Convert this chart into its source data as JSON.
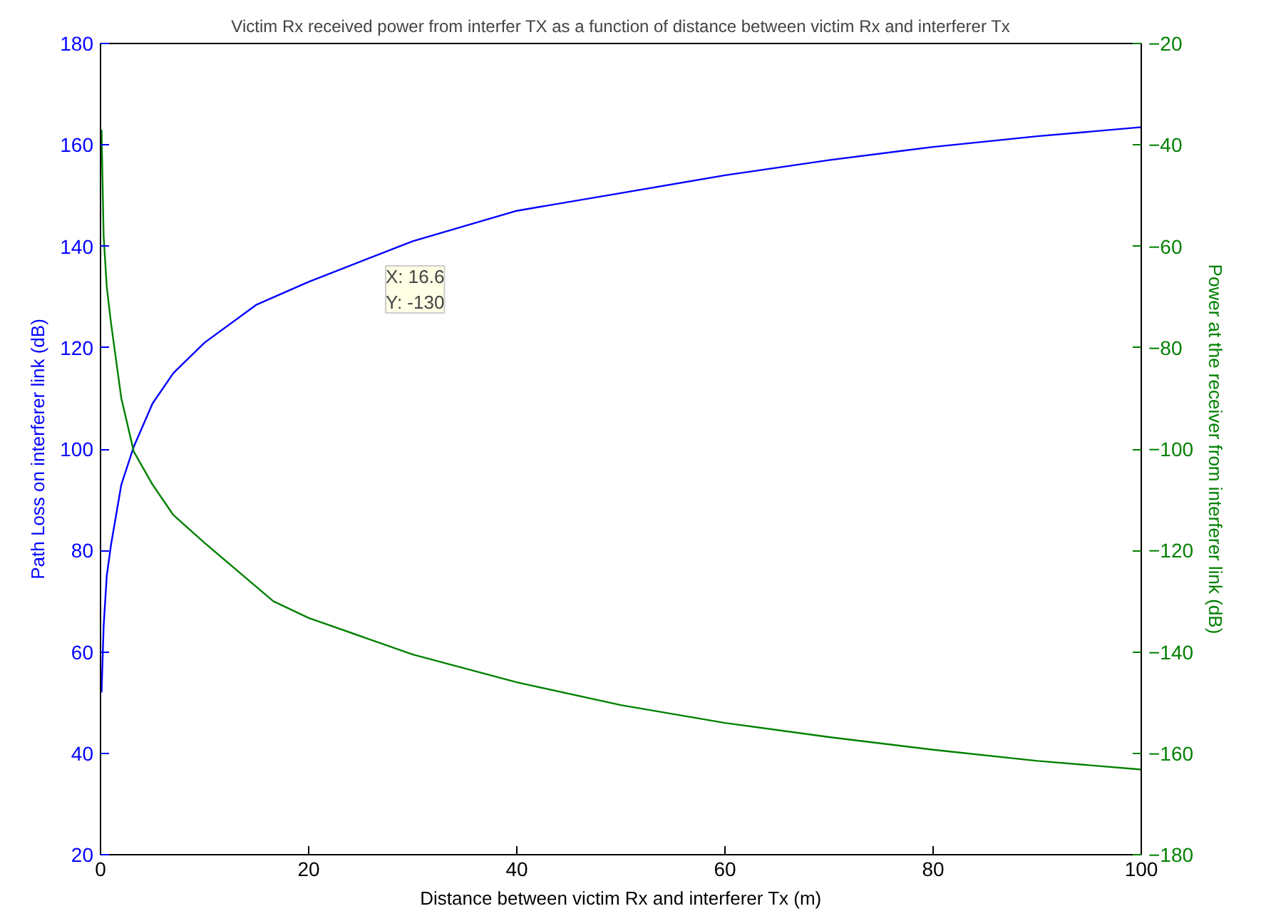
{
  "chart_data": {
    "type": "line",
    "title": "Victim Rx received power from interfer TX as a function of distance between victim Rx and interferer Tx",
    "xlabel": "Distance between victim Rx and interferer Tx (m)",
    "ylabel": "Path Loss on interferer link (dB)",
    "y2label": "Power at the receiver from interferer link (dB)",
    "xlim": [
      0,
      100
    ],
    "xticks": [
      0,
      20,
      40,
      60,
      80,
      100
    ],
    "ylim": [
      20,
      180
    ],
    "yticks": [
      20,
      40,
      60,
      80,
      100,
      120,
      140,
      160,
      180
    ],
    "y2lim": [
      -180,
      -20
    ],
    "y2ticks": [
      -180,
      -160,
      -140,
      -120,
      -100,
      -80,
      -60,
      -40,
      -20
    ],
    "grid": false,
    "series": [
      {
        "color": "#0000ff",
        "x": [
          0.1,
          0.3,
          0.6,
          1,
          2,
          3.2,
          5,
          7,
          10,
          15,
          20,
          30,
          40,
          50,
          60,
          70,
          80,
          90,
          100
        ],
        "values": [
          52,
          65,
          75,
          81,
          93,
          100.5,
          109,
          115,
          121,
          128.5,
          133,
          141,
          147,
          150.5,
          154,
          157,
          159.6,
          161.7,
          163.5
        ]
      },
      {
        "color": "#008000",
        "axis": "y2",
        "x": [
          0.1,
          0.3,
          0.6,
          1,
          2,
          3.2,
          5,
          7,
          10,
          16.6,
          20,
          30,
          40,
          50,
          60,
          70,
          80,
          90,
          100
        ],
        "values": [
          -37,
          -58,
          -68,
          -75,
          -90,
          -100.5,
          -107,
          -113,
          -118.5,
          -130,
          -133.3,
          -140.5,
          -146,
          -150.5,
          -154,
          -156.8,
          -159.3,
          -161.5,
          -163.2
        ]
      }
    ],
    "annotations": [
      "X: 16.6\nY: -130"
    ]
  }
}
